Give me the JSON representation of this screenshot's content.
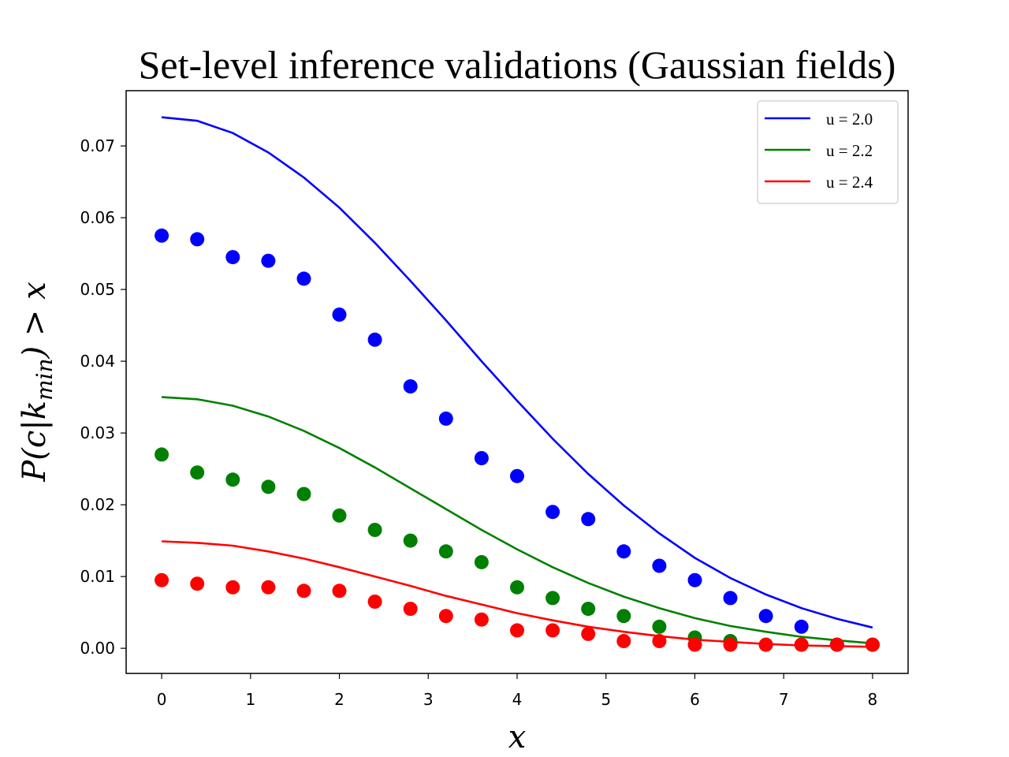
{
  "chart_data": {
    "type": "line",
    "title": "Set-level inference validations (Gaussian fields)",
    "xlabel": "x",
    "ylabel": "P(c|k_min) > x",
    "xlim": [
      -0.4,
      8.4
    ],
    "ylim": [
      -0.0035,
      0.0777
    ],
    "xticks": [
      0,
      1,
      2,
      3,
      4,
      5,
      6,
      7,
      8
    ],
    "yticks": [
      0.0,
      0.01,
      0.02,
      0.03,
      0.04,
      0.05,
      0.06,
      0.07
    ],
    "ytick_labels": [
      "0.00",
      "0.01",
      "0.02",
      "0.03",
      "0.04",
      "0.05",
      "0.06",
      "0.07"
    ],
    "grid": false,
    "legend_position": "top-right",
    "line_x": [
      0,
      0.4,
      0.8,
      1.2,
      1.6,
      2.0,
      2.4,
      2.8,
      3.2,
      3.6,
      4.0,
      4.4,
      4.8,
      5.2,
      5.6,
      6.0,
      6.4,
      6.8,
      7.2,
      7.6,
      8.0
    ],
    "scatter_x": [
      0,
      0.4,
      0.8,
      1.2,
      1.6,
      2.0,
      2.4,
      2.8,
      3.2,
      3.6,
      4.0,
      4.4,
      4.8,
      5.2,
      5.6,
      6.0,
      6.4,
      6.8,
      7.2,
      7.6,
      8.0
    ],
    "series": [
      {
        "name": "u = 2.0",
        "color": "#0000ff",
        "line": [
          0.074,
          0.0735,
          0.0718,
          0.0691,
          0.0656,
          0.0614,
          0.0565,
          0.0512,
          0.0457,
          0.04,
          0.0345,
          0.0292,
          0.0243,
          0.0199,
          0.016,
          0.0126,
          0.0098,
          0.0075,
          0.0056,
          0.0041,
          0.0029
        ],
        "points": [
          0.0575,
          0.057,
          0.0545,
          0.054,
          0.0515,
          0.0465,
          0.043,
          0.0365,
          0.032,
          0.0265,
          0.024,
          0.019,
          0.018,
          0.0135,
          0.0115,
          0.0095,
          0.007,
          0.0045,
          0.003,
          0.0005,
          0.0005
        ]
      },
      {
        "name": "u = 2.2",
        "color": "#008000",
        "line": [
          0.035,
          0.0347,
          0.0338,
          0.0323,
          0.0303,
          0.0279,
          0.0252,
          0.0223,
          0.0194,
          0.0165,
          0.0138,
          0.0113,
          0.0091,
          0.0072,
          0.0056,
          0.0042,
          0.0031,
          0.0023,
          0.0016,
          0.0011,
          0.0007
        ],
        "points": [
          0.027,
          0.0245,
          0.0235,
          0.0225,
          0.0215,
          0.0185,
          0.0165,
          0.015,
          0.0135,
          0.012,
          0.0085,
          0.007,
          0.0055,
          0.0045,
          0.003,
          0.0015,
          0.001,
          0.0005,
          0.0005,
          0.0005,
          0.0005
        ]
      },
      {
        "name": "u = 2.4",
        "color": "#ff0000",
        "line": [
          0.0149,
          0.0147,
          0.0143,
          0.0135,
          0.0125,
          0.0113,
          0.01,
          0.0087,
          0.0073,
          0.0061,
          0.0049,
          0.0039,
          0.003,
          0.0023,
          0.0017,
          0.0012,
          0.0009,
          0.0006,
          0.0004,
          0.0003,
          0.0002
        ],
        "points": [
          0.0095,
          0.009,
          0.0085,
          0.0085,
          0.008,
          0.008,
          0.0065,
          0.0055,
          0.0045,
          0.004,
          0.0025,
          0.0025,
          0.002,
          0.001,
          0.001,
          0.0005,
          0.0005,
          0.0005,
          0.0005,
          0.0005,
          0.0005
        ]
      }
    ]
  }
}
